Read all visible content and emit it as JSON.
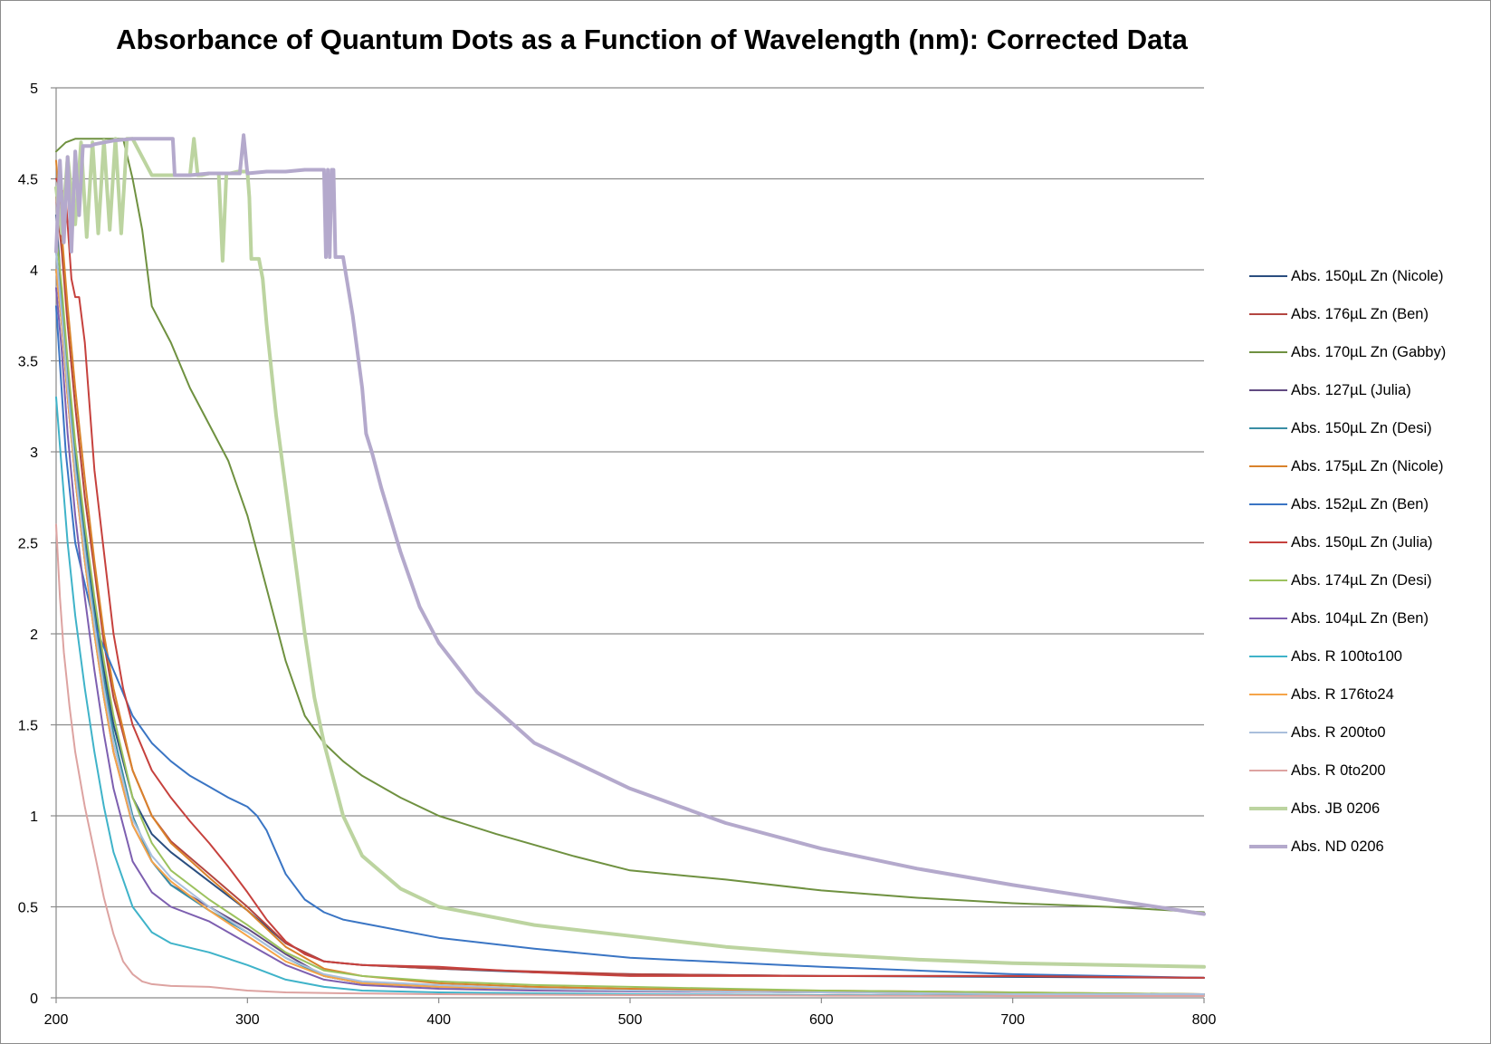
{
  "chart_data": {
    "type": "line",
    "title": "Absorbance of Quantum Dots as a Function of Wavelength (nm): Corrected Data",
    "xlabel": "",
    "ylabel": "",
    "xlim": [
      200,
      800
    ],
    "ylim": [
      0,
      5
    ],
    "x_ticks": [
      200,
      300,
      400,
      500,
      600,
      700,
      800
    ],
    "y_ticks": [
      0,
      0.5,
      1,
      1.5,
      2,
      2.5,
      3,
      3.5,
      4,
      4.5,
      5
    ],
    "grid": "horizontal",
    "legend_position": "right",
    "series": [
      {
        "name": "Abs. 150µL Zn (Nicole)",
        "color": "#2a4e7f",
        "width": 2,
        "x": [
          200,
          202,
          205,
          210,
          215,
          220,
          225,
          230,
          240,
          250,
          260,
          280,
          300,
          320,
          340,
          360,
          400,
          450,
          500,
          600,
          700,
          800
        ],
        "y": [
          4.3,
          4.0,
          3.5,
          3.0,
          2.55,
          2.15,
          1.8,
          1.5,
          1.1,
          0.9,
          0.8,
          0.64,
          0.48,
          0.3,
          0.2,
          0.18,
          0.16,
          0.14,
          0.13,
          0.12,
          0.115,
          0.11
        ]
      },
      {
        "name": "Abs. 176µL Zn (Ben)",
        "color": "#b34641",
        "width": 2,
        "x": [
          200,
          203,
          206,
          210,
          215,
          220,
          225,
          230,
          240,
          250,
          260,
          280,
          300,
          320,
          340,
          360,
          400,
          450,
          500,
          600,
          700,
          800
        ],
        "y": [
          4.4,
          4.1,
          3.7,
          3.25,
          2.75,
          2.35,
          1.95,
          1.65,
          1.25,
          1.0,
          0.86,
          0.68,
          0.5,
          0.3,
          0.2,
          0.18,
          0.16,
          0.145,
          0.13,
          0.12,
          0.12,
          0.11
        ]
      },
      {
        "name": "Abs. 170µL Zn (Gabby)",
        "color": "#6f9140",
        "width": 2,
        "x": [
          200,
          205,
          210,
          220,
          230,
          235,
          240,
          245,
          250,
          260,
          270,
          280,
          290,
          300,
          310,
          320,
          330,
          340,
          350,
          360,
          380,
          400,
          430,
          470,
          500,
          550,
          600,
          650,
          700,
          750,
          800
        ],
        "y": [
          4.65,
          4.7,
          4.72,
          4.72,
          4.72,
          4.72,
          4.5,
          4.22,
          3.8,
          3.6,
          3.35,
          3.15,
          2.95,
          2.65,
          2.25,
          1.85,
          1.55,
          1.4,
          1.3,
          1.22,
          1.1,
          1.0,
          0.9,
          0.78,
          0.7,
          0.65,
          0.59,
          0.55,
          0.52,
          0.5,
          0.47
        ]
      },
      {
        "name": "Abs. 127µL (Julia)",
        "color": "#614a81",
        "width": 2,
        "x": [
          200,
          203,
          206,
          210,
          215,
          220,
          225,
          230,
          240,
          250,
          260,
          280,
          300,
          320,
          340,
          360,
          400,
          450,
          500,
          600,
          700,
          800
        ],
        "y": [
          4.0,
          3.7,
          3.3,
          2.85,
          2.4,
          2.0,
          1.65,
          1.35,
          0.95,
          0.75,
          0.62,
          0.5,
          0.38,
          0.24,
          0.12,
          0.08,
          0.06,
          0.05,
          0.04,
          0.03,
          0.025,
          0.02
        ]
      },
      {
        "name": "Abs. 150µL Zn (Desi)",
        "color": "#3a8ea5",
        "width": 2,
        "x": [
          200,
          203,
          206,
          210,
          215,
          220,
          225,
          230,
          240,
          250,
          260,
          280,
          300,
          320,
          340,
          360,
          400,
          450,
          500,
          600,
          700,
          800
        ],
        "y": [
          4.1,
          3.8,
          3.4,
          2.95,
          2.5,
          2.1,
          1.75,
          1.45,
          1.0,
          0.75,
          0.62,
          0.48,
          0.36,
          0.22,
          0.12,
          0.08,
          0.06,
          0.05,
          0.04,
          0.03,
          0.025,
          0.02
        ]
      },
      {
        "name": "Abs. 175µL Zn (Nicole)",
        "color": "#d9822b",
        "width": 2,
        "x": [
          200,
          203,
          206,
          210,
          215,
          220,
          225,
          230,
          240,
          250,
          260,
          280,
          300,
          320,
          340,
          360,
          400,
          450,
          500,
          600,
          700,
          800
        ],
        "y": [
          4.6,
          4.2,
          3.8,
          3.35,
          2.85,
          2.4,
          2.0,
          1.7,
          1.25,
          1.0,
          0.85,
          0.66,
          0.48,
          0.28,
          0.16,
          0.12,
          0.08,
          0.06,
          0.05,
          0.04,
          0.03,
          0.02
        ]
      },
      {
        "name": "Abs. 152µL Zn (Ben)",
        "color": "#3a75c4",
        "width": 2,
        "x": [
          200,
          205,
          210,
          220,
          230,
          240,
          250,
          260,
          270,
          280,
          290,
          300,
          305,
          310,
          315,
          320,
          330,
          340,
          350,
          360,
          400,
          450,
          500,
          600,
          700,
          800
        ],
        "y": [
          3.8,
          3.0,
          2.5,
          2.05,
          1.8,
          1.55,
          1.4,
          1.3,
          1.22,
          1.16,
          1.1,
          1.05,
          1.0,
          0.92,
          0.8,
          0.68,
          0.54,
          0.47,
          0.43,
          0.41,
          0.33,
          0.27,
          0.22,
          0.17,
          0.13,
          0.11
        ]
      },
      {
        "name": "Abs. 150µL Zn (Julia)",
        "color": "#c6413d",
        "width": 2,
        "x": [
          200,
          205,
          208,
          210,
          212,
          215,
          220,
          225,
          230,
          235,
          240,
          250,
          260,
          270,
          280,
          290,
          300,
          310,
          320,
          330,
          340,
          360,
          400,
          450,
          500,
          600,
          700,
          800
        ],
        "y": [
          4.5,
          4.4,
          3.95,
          3.85,
          3.85,
          3.6,
          2.9,
          2.45,
          2.0,
          1.7,
          1.5,
          1.25,
          1.1,
          0.97,
          0.85,
          0.72,
          0.58,
          0.43,
          0.31,
          0.24,
          0.2,
          0.18,
          0.17,
          0.14,
          0.12,
          0.12,
          0.12,
          0.11
        ]
      },
      {
        "name": "Abs. 174µL Zn (Desi)",
        "color": "#9cc25e",
        "width": 2,
        "x": [
          200,
          203,
          206,
          210,
          215,
          220,
          225,
          230,
          240,
          250,
          260,
          280,
          300,
          320,
          340,
          360,
          400,
          450,
          500,
          600,
          700,
          800
        ],
        "y": [
          4.2,
          3.9,
          3.5,
          3.05,
          2.6,
          2.2,
          1.85,
          1.55,
          1.1,
          0.85,
          0.7,
          0.54,
          0.4,
          0.25,
          0.15,
          0.12,
          0.09,
          0.07,
          0.06,
          0.04,
          0.03,
          0.02
        ]
      },
      {
        "name": "Abs. 104µL Zn (Ben)",
        "color": "#7d5fb0",
        "width": 2,
        "x": [
          200,
          203,
          206,
          210,
          215,
          220,
          225,
          230,
          240,
          250,
          260,
          280,
          300,
          320,
          340,
          360,
          400,
          450,
          500,
          600,
          700,
          800
        ],
        "y": [
          3.9,
          3.55,
          3.1,
          2.65,
          2.2,
          1.8,
          1.45,
          1.15,
          0.75,
          0.58,
          0.5,
          0.42,
          0.3,
          0.18,
          0.1,
          0.07,
          0.05,
          0.04,
          0.035,
          0.03,
          0.02,
          0.02
        ]
      },
      {
        "name": "Abs. R 100to100",
        "color": "#3fb3c9",
        "width": 2,
        "x": [
          200,
          203,
          206,
          210,
          215,
          220,
          225,
          230,
          240,
          250,
          260,
          280,
          300,
          320,
          340,
          360,
          400,
          450,
          500,
          600,
          700,
          800
        ],
        "y": [
          3.3,
          2.9,
          2.5,
          2.1,
          1.7,
          1.35,
          1.05,
          0.8,
          0.5,
          0.36,
          0.3,
          0.25,
          0.18,
          0.1,
          0.06,
          0.04,
          0.03,
          0.025,
          0.02,
          0.015,
          0.012,
          0.01
        ]
      },
      {
        "name": "Abs. R 176to24",
        "color": "#f5a449",
        "width": 2,
        "x": [
          200,
          203,
          206,
          210,
          215,
          220,
          225,
          230,
          240,
          250,
          260,
          280,
          300,
          320,
          340,
          360,
          400,
          450,
          500,
          600,
          700,
          800
        ],
        "y": [
          4.0,
          3.7,
          3.3,
          2.85,
          2.4,
          2.0,
          1.65,
          1.35,
          0.95,
          0.75,
          0.64,
          0.48,
          0.34,
          0.2,
          0.12,
          0.08,
          0.06,
          0.05,
          0.04,
          0.03,
          0.02,
          0.02
        ]
      },
      {
        "name": "Abs. R 200to0",
        "color": "#a9bfdc",
        "width": 2,
        "x": [
          200,
          203,
          206,
          210,
          215,
          220,
          225,
          230,
          240,
          250,
          260,
          280,
          300,
          320,
          340,
          360,
          400,
          450,
          500,
          600,
          700,
          800
        ],
        "y": [
          4.1,
          3.75,
          3.35,
          2.9,
          2.45,
          2.05,
          1.7,
          1.4,
          0.98,
          0.78,
          0.66,
          0.5,
          0.36,
          0.22,
          0.13,
          0.09,
          0.07,
          0.05,
          0.04,
          0.03,
          0.02,
          0.02
        ]
      },
      {
        "name": "Abs. R 0to200",
        "color": "#dda3a1",
        "width": 2,
        "x": [
          200,
          202,
          204,
          207,
          210,
          215,
          220,
          225,
          230,
          235,
          240,
          245,
          250,
          260,
          280,
          300,
          320,
          350,
          400,
          500,
          600,
          700,
          800
        ],
        "y": [
          2.6,
          2.2,
          1.9,
          1.6,
          1.35,
          1.05,
          0.8,
          0.55,
          0.35,
          0.2,
          0.13,
          0.09,
          0.075,
          0.065,
          0.06,
          0.04,
          0.03,
          0.025,
          0.02,
          0.015,
          0.012,
          0.01,
          0.01
        ]
      },
      {
        "name": "Abs. JB 0206",
        "color": "#bcd4a0",
        "width": 4,
        "x": [
          200,
          203,
          206,
          210,
          213,
          216,
          219,
          222,
          225,
          228,
          231,
          234,
          237,
          240,
          250,
          260,
          270,
          272,
          274,
          276,
          280,
          285,
          287,
          289,
          291,
          295,
          298,
          300,
          301,
          302,
          303,
          306,
          308,
          310,
          312,
          315,
          320,
          325,
          330,
          335,
          340,
          350,
          360,
          380,
          400,
          450,
          500,
          550,
          600,
          650,
          700,
          750,
          800
        ],
        "y": [
          4.45,
          4.2,
          4.62,
          4.25,
          4.7,
          4.18,
          4.7,
          4.2,
          4.71,
          4.22,
          4.72,
          4.2,
          4.72,
          4.72,
          4.52,
          4.52,
          4.52,
          4.72,
          4.52,
          4.52,
          4.53,
          4.53,
          4.05,
          4.53,
          4.53,
          4.54,
          4.54,
          4.54,
          4.4,
          4.06,
          4.06,
          4.06,
          3.95,
          3.7,
          3.5,
          3.2,
          2.8,
          2.4,
          2.0,
          1.65,
          1.4,
          1.0,
          0.78,
          0.6,
          0.5,
          0.4,
          0.34,
          0.28,
          0.24,
          0.21,
          0.19,
          0.18,
          0.17
        ]
      },
      {
        "name": "Abs. ND 0206",
        "color": "#b4a9cc",
        "width": 4,
        "x": [
          200,
          202,
          204,
          206,
          208,
          210,
          212,
          214,
          216,
          218,
          220,
          225,
          230,
          240,
          250,
          261,
          262,
          270,
          280,
          290,
          296,
          298,
          300,
          310,
          320,
          330,
          340,
          341,
          342,
          343,
          344,
          345,
          346,
          350,
          355,
          360,
          362,
          365,
          370,
          380,
          390,
          400,
          420,
          450,
          500,
          550,
          600,
          650,
          700,
          750,
          800
        ],
        "y": [
          4.1,
          4.6,
          4.15,
          4.62,
          4.1,
          4.65,
          4.3,
          4.68,
          4.68,
          4.68,
          4.69,
          4.7,
          4.71,
          4.72,
          4.72,
          4.72,
          4.52,
          4.52,
          4.53,
          4.53,
          4.53,
          4.74,
          4.53,
          4.54,
          4.54,
          4.55,
          4.55,
          4.07,
          4.55,
          4.07,
          4.55,
          4.55,
          4.07,
          4.07,
          3.75,
          3.35,
          3.1,
          3.0,
          2.8,
          2.45,
          2.15,
          1.95,
          1.68,
          1.4,
          1.15,
          0.96,
          0.82,
          0.71,
          0.62,
          0.54,
          0.46
        ]
      }
    ]
  }
}
